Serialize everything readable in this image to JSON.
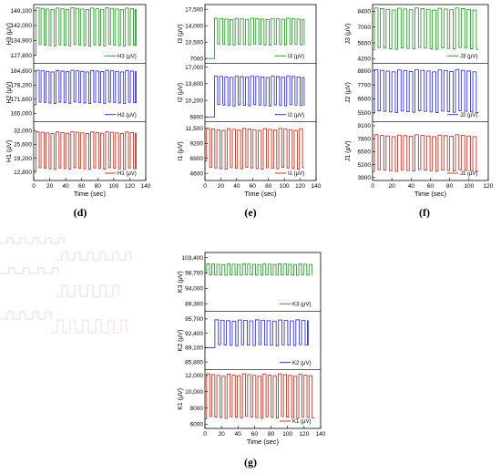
{
  "panel_labels": {
    "d": "(d)",
    "e": "(e)",
    "f": "(f)",
    "g": "(g)"
  },
  "chart_data": [
    {
      "id": "d",
      "type": "line",
      "xlabel": "Time (sec)",
      "xticks": [
        0,
        20,
        40,
        60,
        80,
        100,
        120,
        140
      ],
      "xlim": [
        0,
        140
      ],
      "subplots": [
        {
          "ylabel": "H3",
          "legend": "H3 (μV)",
          "color": "#2ca02c",
          "ylim": [
            124000,
            152000
          ],
          "yticks": [
            127800,
            134900,
            142000,
            149100
          ],
          "ytick_labels": [
            "127,800",
            "134,900",
            "142,000",
            "149,100"
          ],
          "low": 132000,
          "high": 150500,
          "period": 6.2,
          "duty": 0.62,
          "start": 3,
          "end": 128,
          "baseline": 127800
        },
        {
          "ylabel": "H2",
          "legend": "H2 (μV)",
          "color": "#3a3ad6",
          "ylim": [
            161000,
            188500
          ],
          "yticks": [
            165000,
            171600,
            178200,
            184800
          ],
          "ytick_labels": [
            "165,000",
            "171,600",
            "178,200",
            "184,800"
          ],
          "low": 169500,
          "high": 185200,
          "period": 6.2,
          "duty": 0.62,
          "start": 3,
          "end": 128,
          "baseline": 169000
        },
        {
          "ylabel": "H1",
          "legend": "H1 (μV)",
          "color": "#c0392b",
          "ylim": [
            9000,
            36000
          ],
          "yticks": [
            12800,
            19200,
            25600,
            32000
          ],
          "ytick_labels": [
            "12,800",
            "19,200",
            "25,600",
            "32,000"
          ],
          "low": 14000,
          "high": 31500,
          "period": 6.2,
          "duty": 0.62,
          "start": 3,
          "end": 128,
          "baseline": 13500
        }
      ]
    },
    {
      "id": "e",
      "type": "line",
      "xlabel": "Time (sec)",
      "xticks": [
        0,
        20,
        40,
        60,
        80,
        100,
        120,
        140
      ],
      "xlim": [
        0,
        140
      ],
      "subplots": [
        {
          "ylabel": "I3",
          "legend": "I3 (μV)",
          "color": "#2ca02c",
          "ylim": [
            6000,
            18500
          ],
          "yticks": [
            7000,
            10500,
            14000,
            17500
          ],
          "ytick_labels": [
            "7000",
            "10,500",
            "14,000",
            "17,500"
          ],
          "low": 9800,
          "high": 15600,
          "period": 6.5,
          "duty": 0.6,
          "start": 12,
          "end": 125,
          "baseline": 7000
        },
        {
          "ylabel": "I2",
          "legend": "I2 (μV)",
          "color": "#3a3ad6",
          "ylim": [
            5800,
            17800
          ],
          "yticks": [
            6800,
            10200,
            13600,
            17000
          ],
          "ytick_labels": [
            "6800",
            "10,200",
            "13,600",
            "17,000"
          ],
          "low": 9000,
          "high": 15200,
          "period": 6.5,
          "duty": 0.6,
          "start": 12,
          "end": 125,
          "baseline": 6800
        },
        {
          "ylabel": "I1",
          "legend": "I1 (μV)",
          "color": "#c0392b",
          "ylim": [
            3500,
            12500
          ],
          "yticks": [
            4600,
            6900,
            9200,
            11500
          ],
          "ytick_labels": [
            "4600",
            "6900",
            "9200",
            "11,500"
          ],
          "low": 5200,
          "high": 11500,
          "period": 6.5,
          "duty": 0.6,
          "start": 2,
          "end": 125,
          "baseline": 6500
        }
      ]
    },
    {
      "id": "f",
      "type": "line",
      "xlabel": "Time (sec)",
      "xticks": [
        0,
        20,
        40,
        60,
        80,
        100,
        120
      ],
      "xlim": [
        0,
        120
      ],
      "subplots": [
        {
          "ylabel": "J3",
          "legend": "J3 (μV)",
          "color": "#2ca02c",
          "ylim": [
            3800,
            9000
          ],
          "yticks": [
            4200,
            5600,
            7000,
            8400
          ],
          "ytick_labels": [
            "4200",
            "5600",
            "7000",
            "8400"
          ],
          "low": 5000,
          "high": 8700,
          "period": 6.0,
          "duty": 0.6,
          "start": 2,
          "end": 110,
          "baseline": 5000
        },
        {
          "ylabel": "J2",
          "legend": "J2 (μV)",
          "color": "#3a3ad6",
          "ylim": [
            4800,
            9400
          ],
          "yticks": [
            5500,
            6600,
            7700,
            8800
          ],
          "ytick_labels": [
            "5500",
            "6600",
            "7700",
            "8800"
          ],
          "low": 5500,
          "high": 8900,
          "period": 6.0,
          "duty": 0.6,
          "start": 2,
          "end": 110,
          "baseline": 5500
        },
        {
          "ylabel": "J1",
          "legend": "J1 (μV)",
          "color": "#c0392b",
          "ylim": [
            3600,
            9500
          ],
          "yticks": [
            3900,
            5200,
            6500,
            7800,
            9100
          ],
          "ytick_labels": [
            "3900",
            "5200",
            "6500",
            "7800",
            "9100"
          ],
          "low": 4500,
          "high": 8200,
          "period": 6.0,
          "duty": 0.6,
          "start": 2,
          "end": 110,
          "baseline": 4500
        }
      ]
    },
    {
      "id": "g",
      "type": "line",
      "xlabel": "Time (sec)",
      "xticks": [
        0,
        20,
        40,
        60,
        80,
        100,
        120,
        140
      ],
      "xlim": [
        0,
        140
      ],
      "subplots": [
        {
          "ylabel": "K3",
          "legend": "K3 (μV)",
          "color": "#2ca02c",
          "ylim": [
            87000,
            105000
          ],
          "yticks": [
            89300,
            94000,
            98700,
            103400
          ],
          "ytick_labels": [
            "89,300",
            "94,000",
            "98,700",
            "103,400"
          ],
          "low": 98000,
          "high": 101500,
          "period": 6.2,
          "duty": 0.55,
          "start": 2,
          "end": 130,
          "baseline": 98700
        },
        {
          "ylabel": "K2",
          "legend": "K2 (μV)",
          "color": "#3a3ad6",
          "ylim": [
            84000,
            97500
          ],
          "yticks": [
            85800,
            89100,
            92400,
            95700
          ],
          "ytick_labels": [
            "85,800",
            "89,100",
            "92,400",
            "95,700"
          ],
          "low": 89500,
          "high": 95500,
          "period": 7.0,
          "duty": 0.6,
          "start": 12,
          "end": 125,
          "baseline": 89100
        },
        {
          "ylabel": "K1",
          "legend": "K1 (μV)",
          "color": "#c0392b",
          "ylim": [
            5500,
            12700
          ],
          "yticks": [
            6000,
            8000,
            10000,
            12000
          ],
          "ytick_labels": [
            "6000",
            "8000",
            "10,000",
            "12,000"
          ],
          "low": 6700,
          "high": 12200,
          "period": 6.2,
          "duty": 0.6,
          "start": 2,
          "end": 132,
          "baseline": 6700
        }
      ]
    }
  ]
}
